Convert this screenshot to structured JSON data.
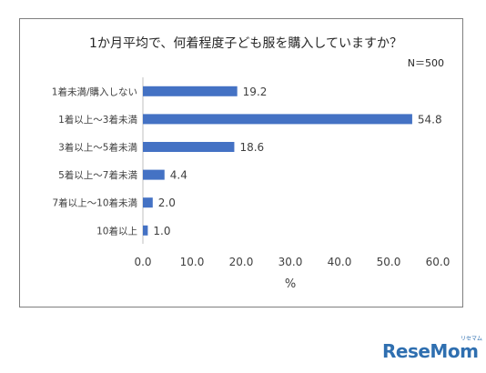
{
  "chart_data": {
    "type": "bar",
    "orientation": "horizontal",
    "title": "1か月平均で、何着程度子ども服を購入していますか？",
    "subtitle": "N＝500",
    "categories": [
      "1着未満/購入しない",
      "1着以上～3着未満",
      "3着以上～5着未満",
      "5着以上～7着未満",
      "7着以上～10着未満",
      "10着以上"
    ],
    "values": [
      19.2,
      54.8,
      18.6,
      4.4,
      2.0,
      1.0
    ],
    "value_labels": [
      "19.2",
      "54.8",
      "18.6",
      "4.4",
      "2.0",
      "1.0"
    ],
    "xlabel": "%",
    "ylabel": "",
    "xlim": [
      0,
      60
    ],
    "xticks": [
      "0.0",
      "10.0",
      "20.0",
      "30.0",
      "40.0",
      "50.0",
      "60.0"
    ],
    "grid": false,
    "bar_color": "#4472c4"
  },
  "logo": {
    "text": "ReseMom",
    "small_text": "リセマム"
  }
}
